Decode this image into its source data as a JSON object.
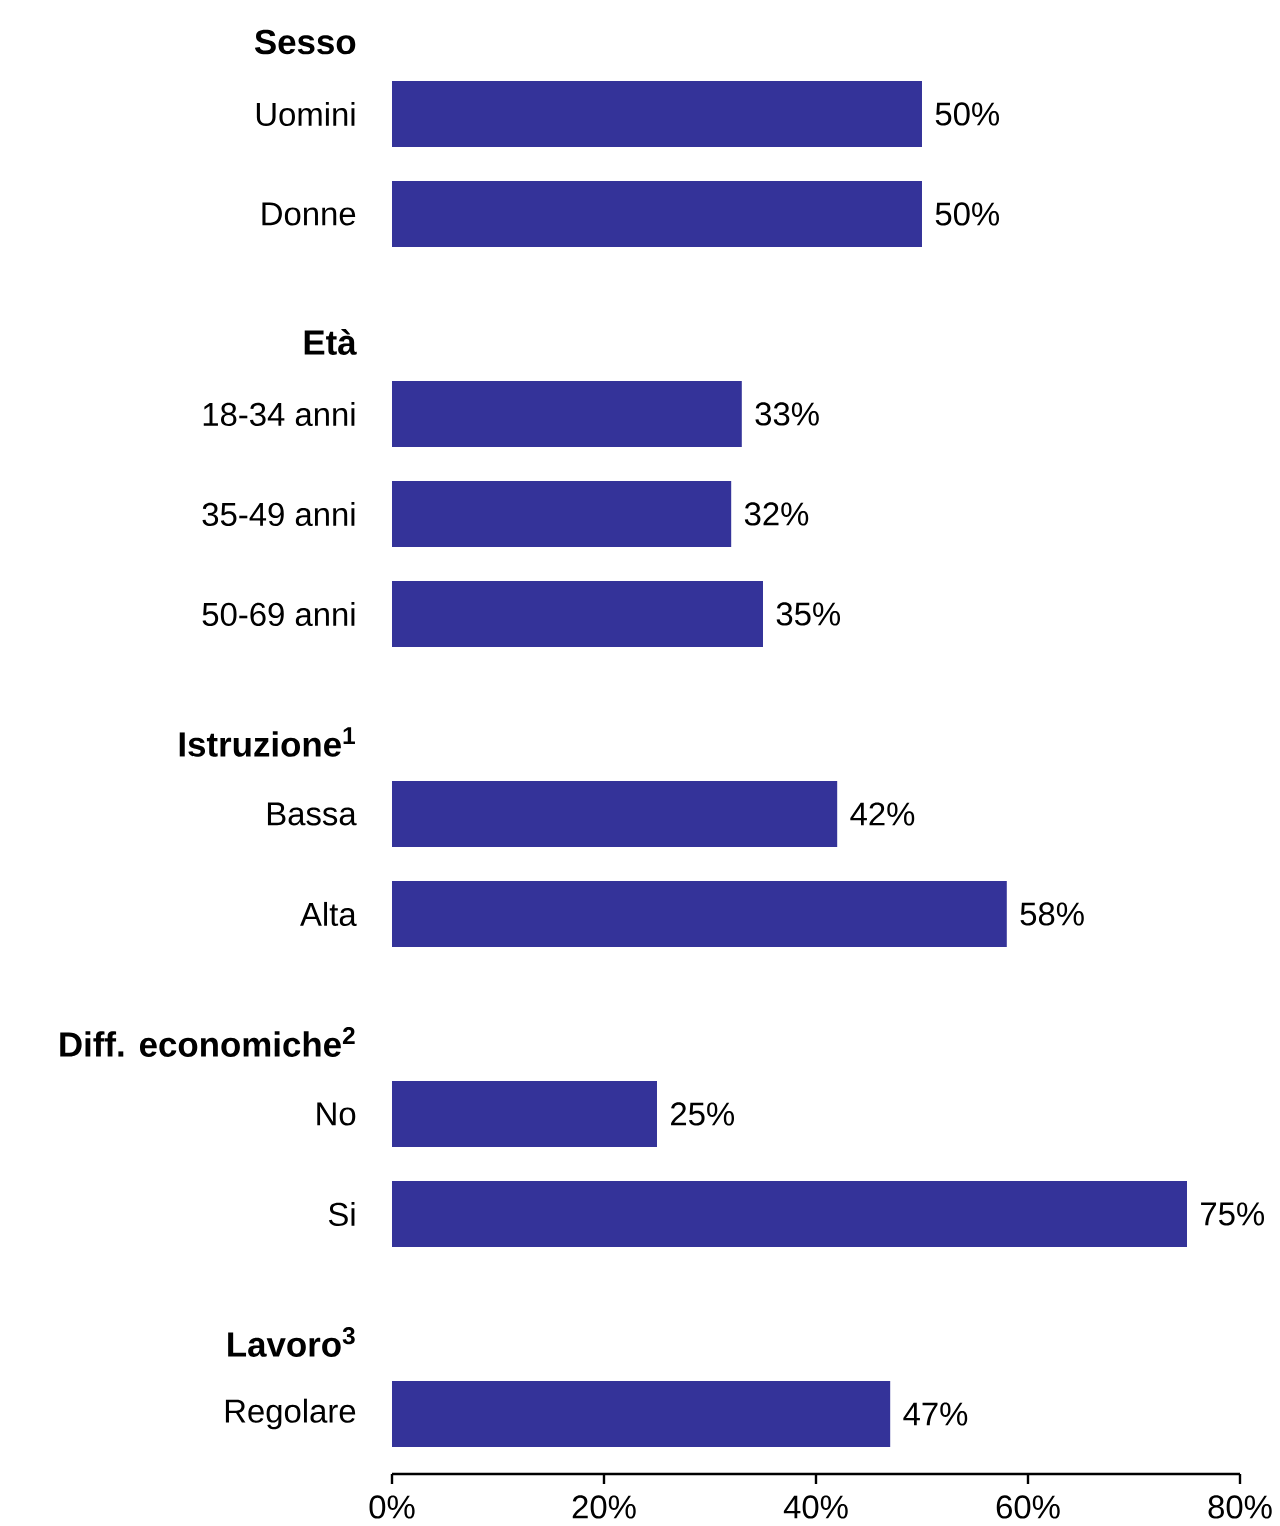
{
  "chart_data": {
    "type": "bar",
    "orientation": "horizontal",
    "color": "#343399",
    "categories": [
      "Sesso",
      "Uomini",
      "Donne",
      "Età",
      "18-34 anni",
      "35-49 anni",
      "50-69 anni",
      "Istruzione$^{1}$",
      "Bassa",
      "Alta",
      "Diff. economiche$^{2}$",
      "No",
      "Si",
      "Lavoro$^{3}$",
      "Regolare"
    ],
    "values": [
      null,
      50,
      50,
      null,
      33,
      32,
      35,
      null,
      42,
      58,
      null,
      25,
      75,
      null,
      47
    ],
    "value_labels": [
      null,
      "50%",
      "50%",
      null,
      "33%",
      "32%",
      "35%",
      null,
      "42%",
      "58%",
      null,
      "25%",
      "75%",
      null,
      "47%"
    ],
    "xlim": [
      0,
      80
    ],
    "xticks": [
      {
        "value": 0,
        "label": "0%"
      },
      {
        "value": 20,
        "label": "20%"
      },
      {
        "value": 40,
        "label": "40%"
      },
      {
        "value": 60,
        "label": "60%"
      },
      {
        "value": 80,
        "label": "80%"
      }
    ]
  }
}
